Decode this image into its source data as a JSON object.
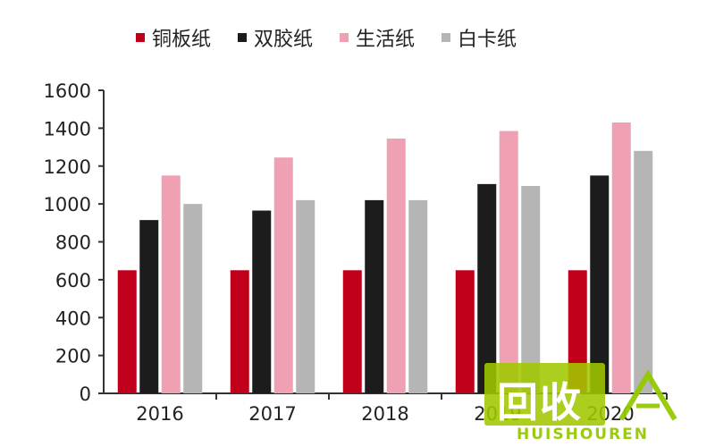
{
  "chart_data": {
    "type": "bar",
    "categories": [
      "2016",
      "2017",
      "2018",
      "2019",
      "2020"
    ],
    "series": [
      {
        "name": "铜板纸",
        "color": "#c0001a",
        "values": [
          650,
          650,
          650,
          650,
          650
        ]
      },
      {
        "name": "双胶纸",
        "color": "#1c1c1c",
        "values": [
          915,
          965,
          1020,
          1105,
          1150
        ]
      },
      {
        "name": "生活纸",
        "color": "#efa0b2",
        "values": [
          1150,
          1245,
          1345,
          1385,
          1430
        ]
      },
      {
        "name": "白卡纸",
        "color": "#b5b5b5",
        "values": [
          1000,
          1020,
          1020,
          1095,
          1280
        ]
      }
    ],
    "yticks": [
      0,
      200,
      400,
      600,
      800,
      1000,
      1200,
      1400,
      1600
    ],
    "ylim": [
      0,
      1600
    ],
    "legend": "top",
    "grid": false
  },
  "watermark": {
    "text": "回收",
    "subtext": "HUISHOUREN"
  }
}
